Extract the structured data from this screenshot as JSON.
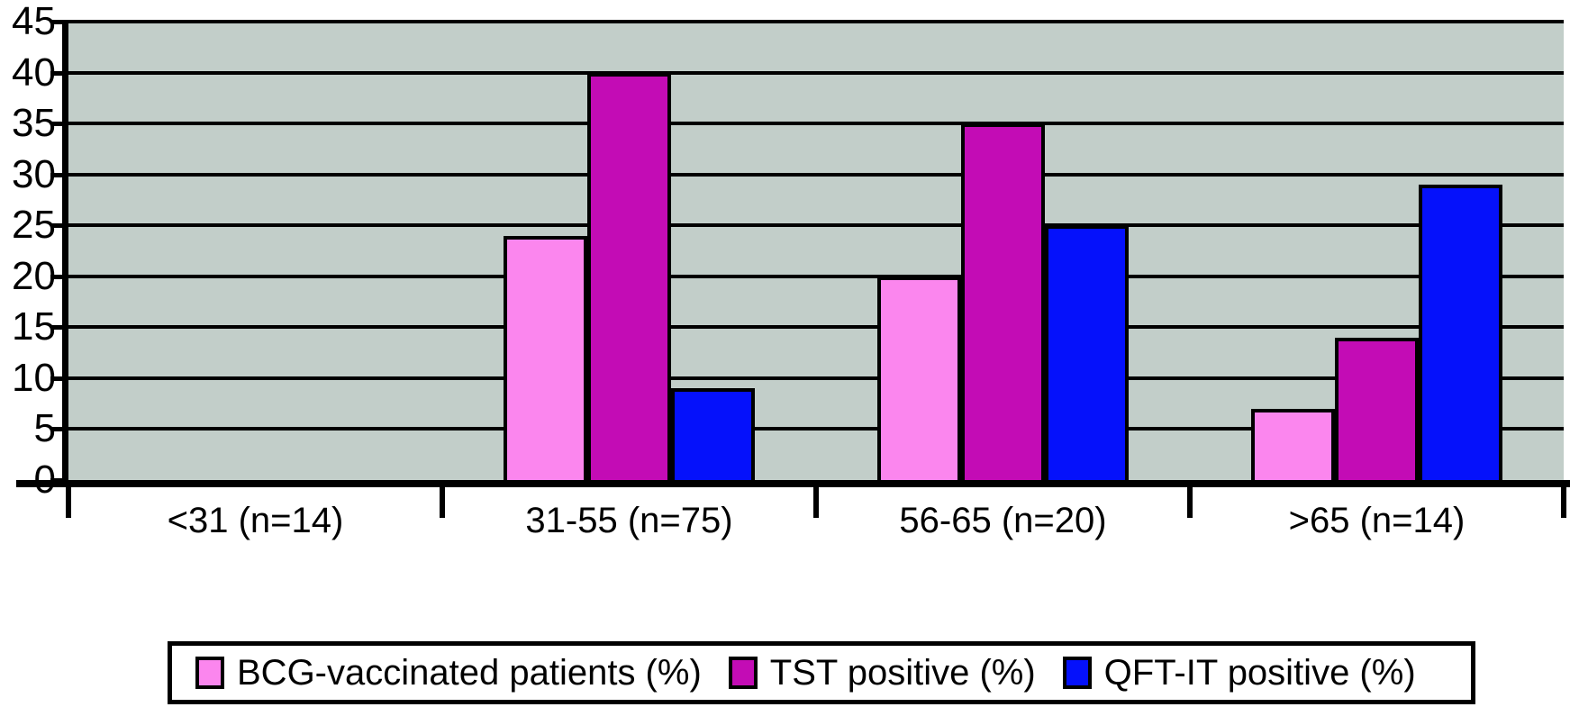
{
  "chart_data": {
    "type": "bar",
    "title": "",
    "categories": [
      "<31 (n=14)",
      "31-55 (n=75)",
      "56-65 (n=20)",
      ">65 (n=14)"
    ],
    "series": [
      {
        "name": "BCG-vaccinated patients (%)",
        "color": "#fb86ee",
        "values": [
          0,
          24,
          20,
          7
        ]
      },
      {
        "name": "TST positive (%)",
        "color": "#c30cb5",
        "values": [
          0,
          40,
          35,
          14
        ]
      },
      {
        "name": "QFT-IT positive (%)",
        "color": "#0511fb",
        "values": [
          0,
          9,
          25,
          29
        ]
      }
    ],
    "ylim": [
      0,
      45
    ],
    "yticks": [
      0,
      5,
      10,
      15,
      20,
      25,
      30,
      35,
      40,
      45
    ],
    "xlabel": "",
    "ylabel": "",
    "grid": true,
    "legend_position": "bottom",
    "plot_background": "#c2cec9",
    "axis_color": "#000000",
    "page_background": "#ffffff"
  }
}
